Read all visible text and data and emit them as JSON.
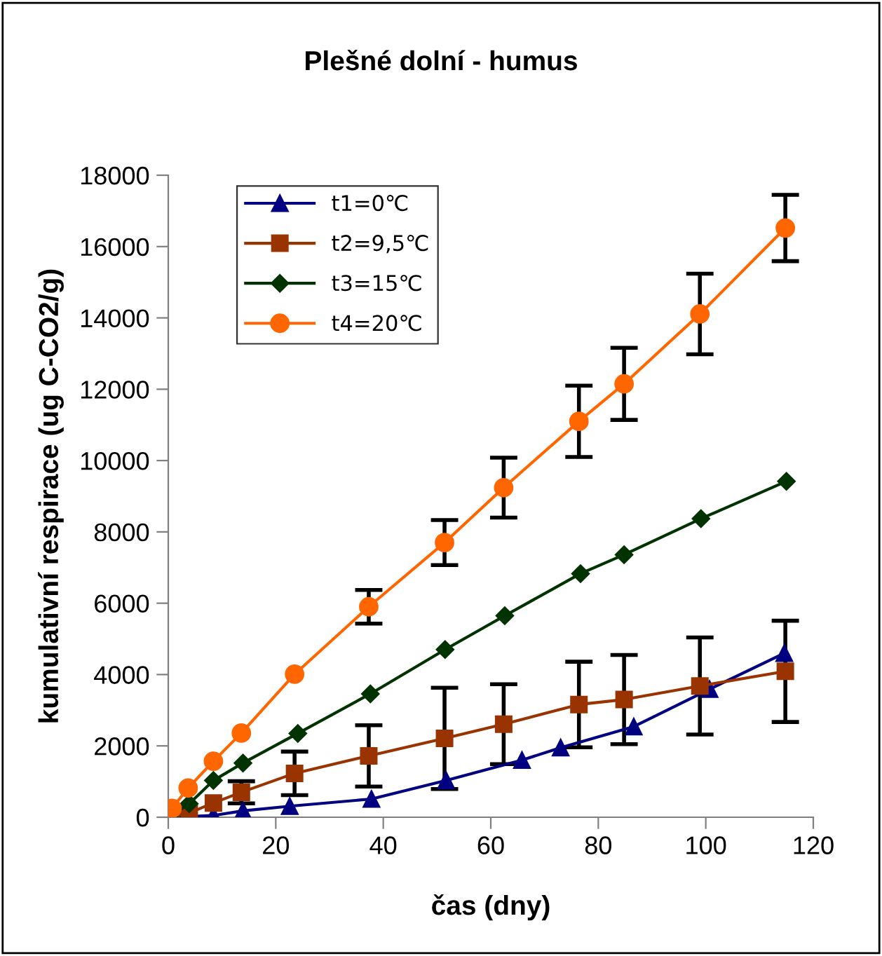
{
  "chart_data": {
    "type": "line",
    "title": "Plešné dolní - humus",
    "xlabel": "čas (dny)",
    "ylabel": "kumulativní respirace (ug C-CO2/g)",
    "xlim": [
      0,
      120
    ],
    "xticks": [
      0,
      20,
      40,
      60,
      80,
      100,
      120
    ],
    "ylim": [
      0,
      18000
    ],
    "yticks": [
      0,
      2000,
      4000,
      6000,
      8000,
      10000,
      12000,
      14000,
      16000,
      18000
    ],
    "grid": false,
    "legend": "top left",
    "line_style": "solid",
    "series": [
      {
        "name": "t1=0℃",
        "color": "#000080",
        "marker": "triangle",
        "x": [
          0.5,
          3.9,
          8.4,
          13.9,
          22.6,
          37.8,
          51.7,
          65.8,
          73,
          86.6,
          100.7,
          114.6
        ],
        "values": [
          0,
          20,
          50,
          180,
          310,
          510,
          1030,
          1600,
          1950,
          2540,
          3590,
          4600
        ]
      },
      {
        "name": "t2=9,5℃",
        "color": "#993300",
        "marker": "square",
        "x": [
          0.5,
          3.9,
          8.4,
          13.6,
          23.5,
          37.3,
          51.4,
          62.4,
          76.4,
          84.8,
          98.9,
          114.8
        ],
        "values": [
          50,
          120,
          400,
          700,
          1230,
          1720,
          2210,
          2610,
          3160,
          3300,
          3680,
          4090
        ],
        "errors": [
          null,
          null,
          null,
          310,
          610,
          860,
          1420,
          1120,
          1200,
          1250,
          1360,
          1420
        ]
      },
      {
        "name": "t3=15℃",
        "color": "#003300",
        "marker": "diamond",
        "x": [
          0.2,
          3.9,
          8.4,
          13.9,
          24.1,
          37.6,
          51.5,
          62.6,
          76.7,
          84.8,
          99.1,
          115
        ],
        "values": [
          10,
          380,
          1030,
          1520,
          2350,
          3460,
          4700,
          5650,
          6830,
          7360,
          8370,
          9420
        ]
      },
      {
        "name": "t4=20℃",
        "color": "#ff6600",
        "marker": "circle",
        "x": [
          0.7,
          3.7,
          8.4,
          13.6,
          23.5,
          37.3,
          51.4,
          62.4,
          76.4,
          84.8,
          98.9,
          114.8
        ],
        "values": [
          250,
          820,
          1570,
          2360,
          4010,
          5900,
          7700,
          9240,
          11100,
          12150,
          14110,
          16520
        ],
        "errors": [
          null,
          null,
          null,
          null,
          null,
          470,
          630,
          840,
          1000,
          1010,
          1130,
          930
        ]
      }
    ]
  }
}
